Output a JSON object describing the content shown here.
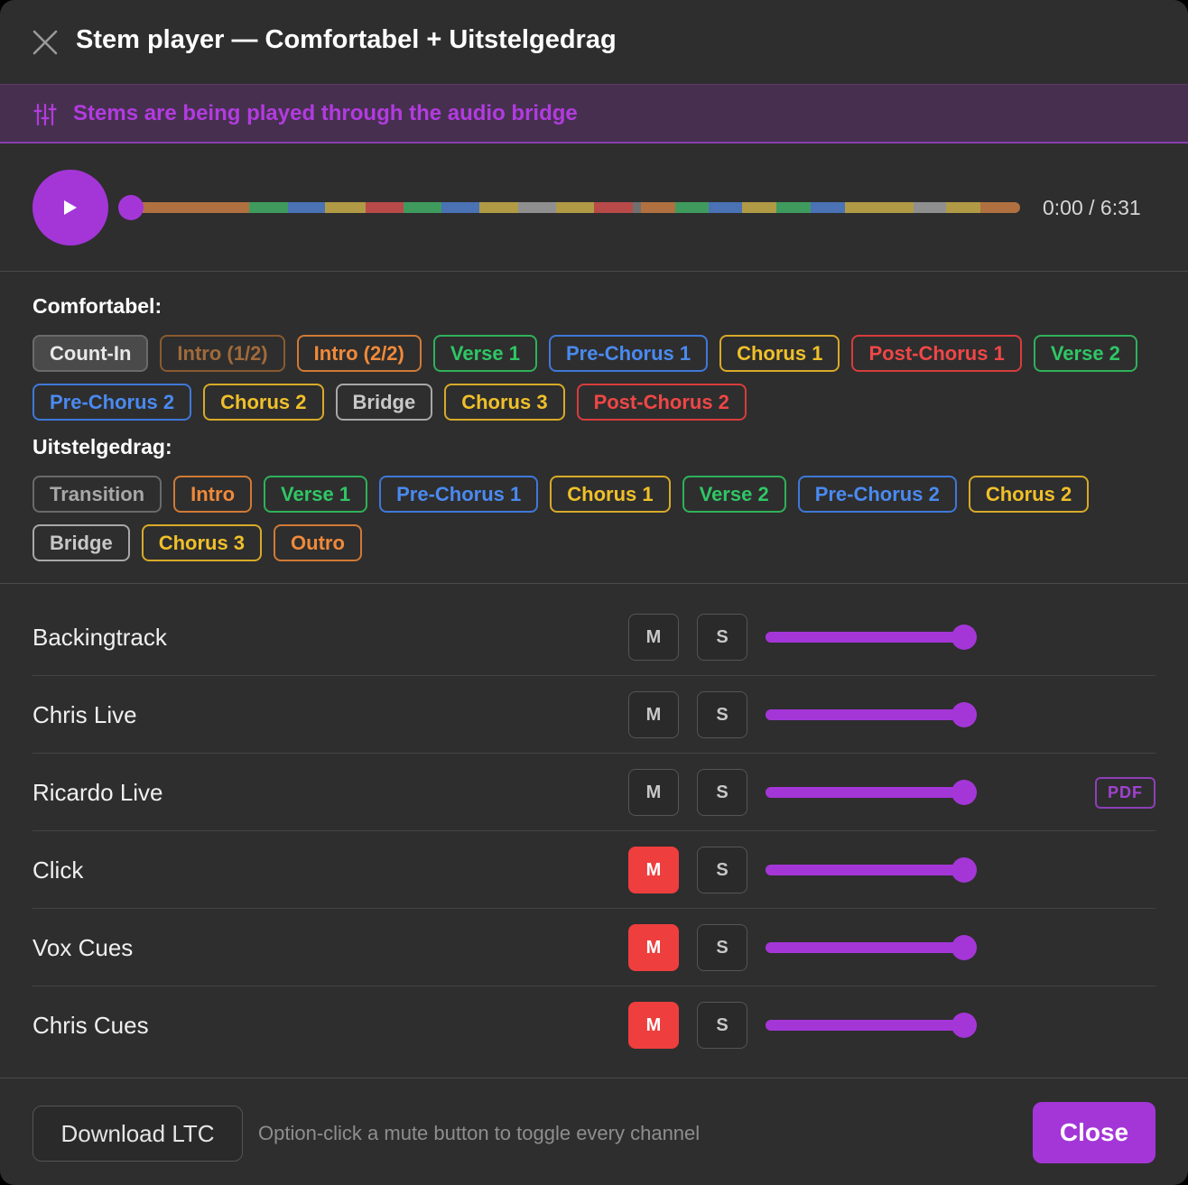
{
  "header": {
    "title": "Stem player — Comfortabel + Uitstelgedrag",
    "close_icon": "close-icon"
  },
  "banner": {
    "icon": "sliders-icon",
    "text": "Stems are being played through the audio bridge",
    "color": "#b23be0"
  },
  "transport": {
    "time": "0:00 / 6:31",
    "progress": 0,
    "accent": "#a436d8",
    "timeline_segments": [
      {
        "color": "#b07040",
        "weight": 132
      },
      {
        "color": "#3f9a5e",
        "weight": 43
      },
      {
        "color": "#4a72b5",
        "weight": 41
      },
      {
        "color": "#b09a45",
        "weight": 44
      },
      {
        "color": "#b84a4a",
        "weight": 42
      },
      {
        "color": "#3f9a5e",
        "weight": 42
      },
      {
        "color": "#4a72b5",
        "weight": 42
      },
      {
        "color": "#b09a45",
        "weight": 43
      },
      {
        "color": "#8f8f8f",
        "weight": 42
      },
      {
        "color": "#b09a45",
        "weight": 42
      },
      {
        "color": "#b84a4a",
        "weight": 43
      },
      {
        "color": "#707070",
        "weight": 9
      },
      {
        "color": "#b07040",
        "weight": 38
      },
      {
        "color": "#3f9a5e",
        "weight": 37
      },
      {
        "color": "#4a72b5",
        "weight": 37
      },
      {
        "color": "#b09a45",
        "weight": 38
      },
      {
        "color": "#3f9a5e",
        "weight": 37
      },
      {
        "color": "#4a72b5",
        "weight": 38
      },
      {
        "color": "#b09a45",
        "weight": 76
      },
      {
        "color": "#8f8f8f",
        "weight": 36
      },
      {
        "color": "#b09a45",
        "weight": 38
      },
      {
        "color": "#b07040",
        "weight": 44
      }
    ]
  },
  "songs": [
    {
      "name": "Comfortabel:",
      "sections": [
        {
          "label": "Count-In",
          "color": "#e8e8e8",
          "border": "#6a6a6a",
          "bg": "#4a4a4a"
        },
        {
          "label": "Intro (1/2)",
          "color": "#a06a3a",
          "border": "#8a5a30"
        },
        {
          "label": "Intro (2/2)",
          "color": "#f08a3a",
          "border": "#d07a35"
        },
        {
          "label": "Verse 1",
          "color": "#2fc765",
          "border": "#2fb15a"
        },
        {
          "label": "Pre-Chorus 1",
          "color": "#4a8af0",
          "border": "#3f78d8"
        },
        {
          "label": "Chorus 1",
          "color": "#f0c02a",
          "border": "#d8aa28"
        },
        {
          "label": "Post-Chorus 1",
          "color": "#f04646",
          "border": "#d83c3c"
        },
        {
          "label": "Verse 2",
          "color": "#2fc765",
          "border": "#2fb15a"
        },
        {
          "label": "Pre-Chorus 2",
          "color": "#4a8af0",
          "border": "#3f78d8"
        },
        {
          "label": "Chorus 2",
          "color": "#f0c02a",
          "border": "#d8aa28"
        },
        {
          "label": "Bridge",
          "color": "#c8c8c8",
          "border": "#a8a8a8"
        },
        {
          "label": "Chorus 3",
          "color": "#f0c02a",
          "border": "#d8aa28"
        },
        {
          "label": "Post-Chorus 2",
          "color": "#f04646",
          "border": "#d83c3c"
        }
      ]
    },
    {
      "name": "Uitstelgedrag:",
      "sections": [
        {
          "label": "Transition",
          "color": "#a8a8a8",
          "border": "#6a6a6a"
        },
        {
          "label": "Intro",
          "color": "#f08a3a",
          "border": "#d07a35"
        },
        {
          "label": "Verse 1",
          "color": "#2fc765",
          "border": "#2fb15a"
        },
        {
          "label": "Pre-Chorus 1",
          "color": "#4a8af0",
          "border": "#3f78d8"
        },
        {
          "label": "Chorus 1",
          "color": "#f0c02a",
          "border": "#d8aa28"
        },
        {
          "label": "Verse 2",
          "color": "#2fc765",
          "border": "#2fb15a"
        },
        {
          "label": "Pre-Chorus 2",
          "color": "#4a8af0",
          "border": "#3f78d8"
        },
        {
          "label": "Chorus 2",
          "color": "#f0c02a",
          "border": "#d8aa28"
        },
        {
          "label": "Bridge",
          "color": "#c8c8c8",
          "border": "#a8a8a8"
        },
        {
          "label": "Chorus 3",
          "color": "#f0c02a",
          "border": "#d8aa28"
        },
        {
          "label": "Outro",
          "color": "#f08a3a",
          "border": "#d07a35"
        }
      ]
    }
  ],
  "tracks": [
    {
      "name": "Backingtrack",
      "mute_label": "M",
      "solo_label": "S",
      "muted": false,
      "volume": 0.94,
      "pdf": null
    },
    {
      "name": "Chris Live",
      "mute_label": "M",
      "solo_label": "S",
      "muted": false,
      "volume": 0.94,
      "pdf": null
    },
    {
      "name": "Ricardo Live",
      "mute_label": "M",
      "solo_label": "S",
      "muted": false,
      "volume": 0.94,
      "pdf": "PDF"
    },
    {
      "name": "Click",
      "mute_label": "M",
      "solo_label": "S",
      "muted": true,
      "volume": 0.94,
      "pdf": null
    },
    {
      "name": "Vox Cues",
      "mute_label": "M",
      "solo_label": "S",
      "muted": true,
      "volume": 0.94,
      "pdf": null
    },
    {
      "name": "Chris Cues",
      "mute_label": "M",
      "solo_label": "S",
      "muted": true,
      "volume": 0.94,
      "pdf": null
    }
  ],
  "footer": {
    "download_label": "Download LTC",
    "hint": "Option-click a mute button to toggle every channel",
    "close_label": "Close"
  }
}
